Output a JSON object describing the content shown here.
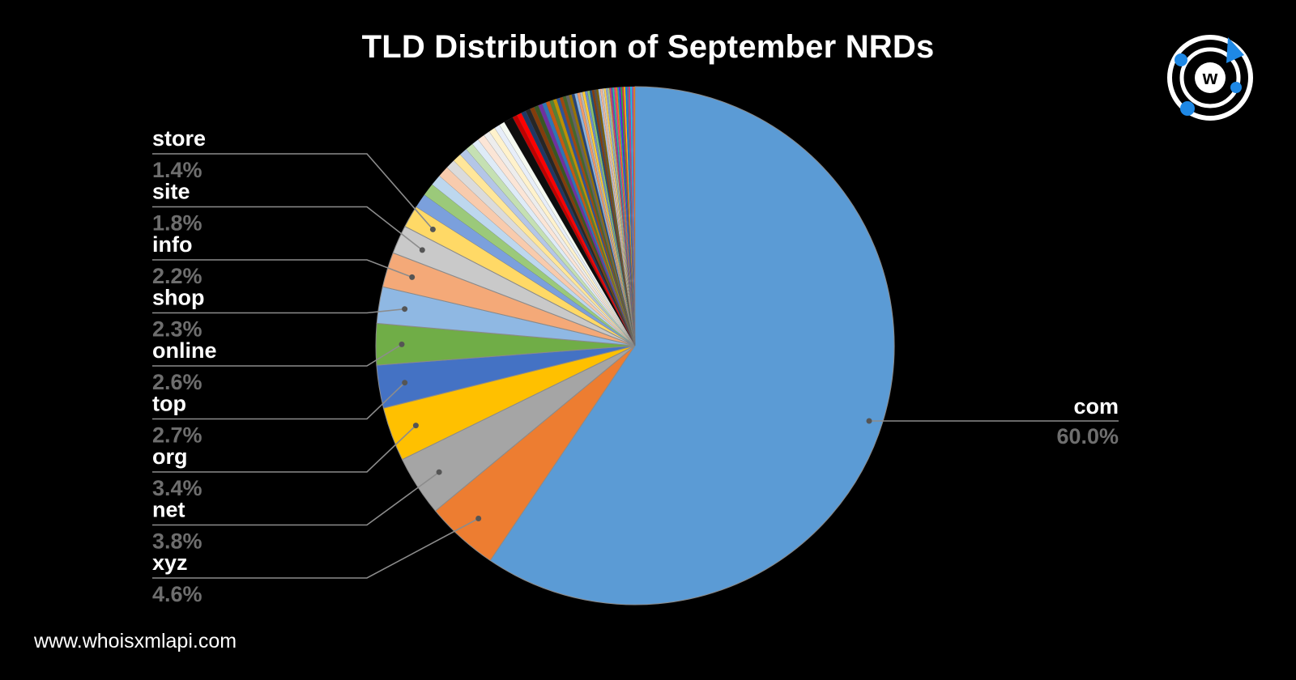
{
  "chart_data": {
    "type": "pie",
    "title": "TLD Distribution of September NRDs",
    "slices": [
      {
        "label": "com",
        "percent_label": "60.0%",
        "value": 60.0,
        "color": "#5B9BD5"
      },
      {
        "label": "xyz",
        "percent_label": "4.6%",
        "value": 4.6,
        "color": "#ED7D31"
      },
      {
        "label": "net",
        "percent_label": "3.8%",
        "value": 3.8,
        "color": "#A5A5A5"
      },
      {
        "label": "org",
        "percent_label": "3.4%",
        "value": 3.4,
        "color": "#FFC000"
      },
      {
        "label": "top",
        "percent_label": "2.7%",
        "value": 2.7,
        "color": "#4472C4"
      },
      {
        "label": "online",
        "percent_label": "2.6%",
        "value": 2.6,
        "color": "#70AD47"
      },
      {
        "label": "shop",
        "percent_label": "2.3%",
        "value": 2.3,
        "color": "#8FB8E3"
      },
      {
        "label": "info",
        "percent_label": "2.2%",
        "value": 2.2,
        "color": "#F4A978"
      },
      {
        "label": "site",
        "percent_label": "1.8%",
        "value": 1.8,
        "color": "#C9C9C9"
      },
      {
        "label": "store",
        "percent_label": "1.4%",
        "value": 1.4,
        "color": "#FFD966"
      }
    ],
    "other_slices": [
      {
        "value": 0.9,
        "color": "#7BA0DC"
      },
      {
        "value": 0.8,
        "color": "#9BC97A"
      },
      {
        "value": 0.7,
        "color": "#BDD7EE"
      },
      {
        "value": 0.7,
        "color": "#F8CBAD"
      },
      {
        "value": 0.6,
        "color": "#DBDBDB"
      },
      {
        "value": 0.55,
        "color": "#FFE699"
      },
      {
        "value": 0.5,
        "color": "#B4C6E7"
      },
      {
        "value": 0.5,
        "color": "#C5E0B3"
      },
      {
        "value": 0.45,
        "color": "#DEEBF7"
      },
      {
        "value": 0.45,
        "color": "#FBE5D6"
      },
      {
        "value": 0.4,
        "color": "#EDEDED"
      },
      {
        "value": 0.4,
        "color": "#FFF2CC"
      },
      {
        "value": 0.35,
        "color": "#E7EEF9"
      },
      {
        "value": 0.35,
        "color": "#F5F9F1"
      },
      {
        "value": 0.6,
        "color": "#0D0D0D"
      },
      {
        "value": 0.3,
        "color": "#C00000"
      },
      {
        "value": 0.3,
        "color": "#FF0000"
      },
      {
        "value": 0.3,
        "color": "#1F3864"
      },
      {
        "value": 0.3,
        "color": "#262626"
      },
      {
        "value": 0.28,
        "color": "#833C0B"
      },
      {
        "value": 0.27,
        "color": "#385723"
      },
      {
        "value": 0.26,
        "color": "#7030A0"
      },
      {
        "value": 0.25,
        "color": "#2E75B6"
      },
      {
        "value": 0.24,
        "color": "#C55A11"
      },
      {
        "value": 0.23,
        "color": "#548235"
      },
      {
        "value": 0.22,
        "color": "#BF9000"
      },
      {
        "value": 0.21,
        "color": "#2F5496"
      },
      {
        "value": 0.2,
        "color": "#9E480E"
      },
      {
        "value": 0.2,
        "color": "#43682B"
      },
      {
        "value": 0.19,
        "color": "#636363"
      },
      {
        "value": 0.18,
        "color": "#997300"
      },
      {
        "value": 0.18,
        "color": "#264478"
      },
      {
        "value": 0.17,
        "color": "#8AB3E0"
      },
      {
        "value": 0.17,
        "color": "#F19A66"
      },
      {
        "value": 0.16,
        "color": "#B7B7B7"
      },
      {
        "value": 0.16,
        "color": "#FFCD33"
      },
      {
        "value": 0.15,
        "color": "#698ED0"
      },
      {
        "value": 0.15,
        "color": "#8CC168"
      },
      {
        "value": 0.14,
        "color": "#1E4E79"
      },
      {
        "value": 0.14,
        "color": "#843C0C"
      },
      {
        "value": 0.13,
        "color": "#525252"
      },
      {
        "value": 0.13,
        "color": "#7F6000"
      },
      {
        "value": 0.12,
        "color": "#A9C4EA"
      },
      {
        "value": 0.12,
        "color": "#F7BB97"
      },
      {
        "value": 0.12,
        "color": "#CCCCCC"
      },
      {
        "value": 0.11,
        "color": "#FFD34D"
      },
      {
        "value": 0.11,
        "color": "#8BA6DA"
      },
      {
        "value": 0.11,
        "color": "#A6CF8B"
      },
      {
        "value": 0.1,
        "color": "#D9534F"
      },
      {
        "value": 0.1,
        "color": "#6F42C1"
      },
      {
        "value": 0.1,
        "color": "#20C997"
      },
      {
        "value": 0.1,
        "color": "#E83E8C"
      },
      {
        "value": 0.1,
        "color": "#FD7E14"
      },
      {
        "value": 0.1,
        "color": "#17A2B8"
      },
      {
        "value": 0.1,
        "color": "#6610F2"
      },
      {
        "value": 0.1,
        "color": "#28A745"
      },
      {
        "value": 0.1,
        "color": "#DC3545"
      },
      {
        "value": 0.1,
        "color": "#FFC107"
      },
      {
        "value": 0.1,
        "color": "#007BFF"
      },
      {
        "value": 0.1,
        "color": "#6C757D"
      },
      {
        "value": 0.1,
        "color": "#D63384"
      },
      {
        "value": 0.1,
        "color": "#0DCAF0"
      },
      {
        "value": 0.1,
        "color": "#9B59B6"
      },
      {
        "value": 0.1,
        "color": "#E67E22"
      }
    ],
    "legend": "none",
    "grid": false
  },
  "footer": {
    "url": "www.whoisxmlapi.com"
  },
  "logo": {
    "letter": "w",
    "accent": "#1E88E5"
  }
}
